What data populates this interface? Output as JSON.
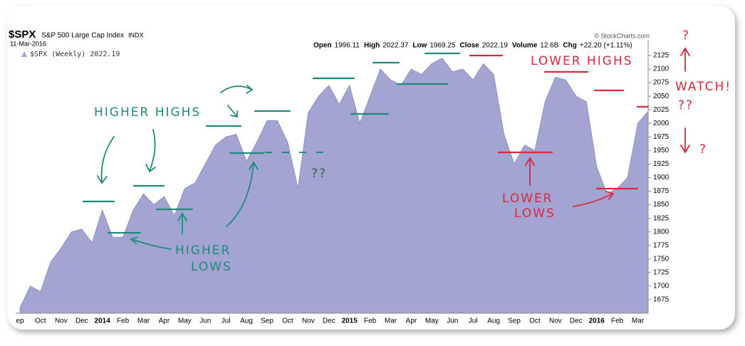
{
  "chart_data": {
    "type": "area",
    "symbol": "$SPX",
    "name": "S&P 500 Large Cap Index",
    "exchange": "INDX",
    "date": "11-Mar-2016",
    "source": "© StockCharts.com",
    "stats": [
      {
        "label": "Open",
        "value": "1996.11"
      },
      {
        "label": "High",
        "value": "2022.37"
      },
      {
        "label": "Low",
        "value": "1969.25"
      },
      {
        "label": "Close",
        "value": "2022.19"
      },
      {
        "label": "Volume",
        "value": "12.6B"
      },
      {
        "label": "Chg",
        "value": "+22.20 (+1.11%)"
      }
    ],
    "categories": [
      "ep",
      null,
      "Oct",
      null,
      "Nov",
      null,
      "Dec",
      null,
      "2014",
      null,
      "Feb",
      null,
      "Mar",
      null,
      "Apr",
      null,
      "May",
      null,
      "Jun",
      null,
      "Jul",
      null,
      "Aug",
      null,
      "Sep",
      null,
      "Oct",
      null,
      "Nov",
      null,
      "Dec",
      null,
      "2015",
      null,
      "Feb",
      null,
      "Mar",
      null,
      "Apr",
      null,
      "May",
      null,
      "Jun",
      null,
      "Jul",
      null,
      "Aug",
      null,
      "Sep",
      null,
      "Oct",
      null,
      "Nov",
      null,
      "Dec",
      null,
      "2016",
      null,
      "Feb",
      null,
      "Mar",
      null
    ],
    "series": [
      {
        "name": "$SPX (Weekly) 2022.19",
        "color": "#a4a4d2",
        "values": [
          1660,
          1700,
          1690,
          1745,
          1770,
          1800,
          1805,
          1780,
          1840,
          1790,
          1790,
          1840,
          1870,
          1850,
          1865,
          1830,
          1880,
          1890,
          1925,
          1960,
          1975,
          1980,
          1930,
          1965,
          2005,
          2005,
          1965,
          1880,
          2020,
          2050,
          2070,
          2035,
          2070,
          2000,
          2050,
          2100,
          2080,
          2070,
          2100,
          2090,
          2110,
          2120,
          2095,
          2100,
          2080,
          2110,
          2090,
          1980,
          1925,
          1960,
          1950,
          2040,
          2085,
          2080,
          2050,
          2040,
          1920,
          1870,
          1880,
          1900,
          2000,
          2022.19
        ]
      }
    ],
    "ylim": [
      1650,
      2146
    ],
    "yticks": [
      1675,
      1700,
      1725,
      1750,
      1775,
      1800,
      1825,
      1850,
      1875,
      1900,
      1925,
      1950,
      1975,
      2000,
      2025,
      2050,
      2075,
      2100,
      2125
    ],
    "grid": false
  },
  "annotations": {
    "higher_highs": "HIGHER HIGHS",
    "higher_lows": [
      "HIGHER",
      "LOWS"
    ],
    "lower_highs": "LOWER HIGHS",
    "lower_lows": [
      "LOWER",
      "LOWS"
    ],
    "watch": "WATCH!",
    "question_pair": "??",
    "question_top": "?",
    "question_bottom": "?",
    "question_mid": "??"
  }
}
